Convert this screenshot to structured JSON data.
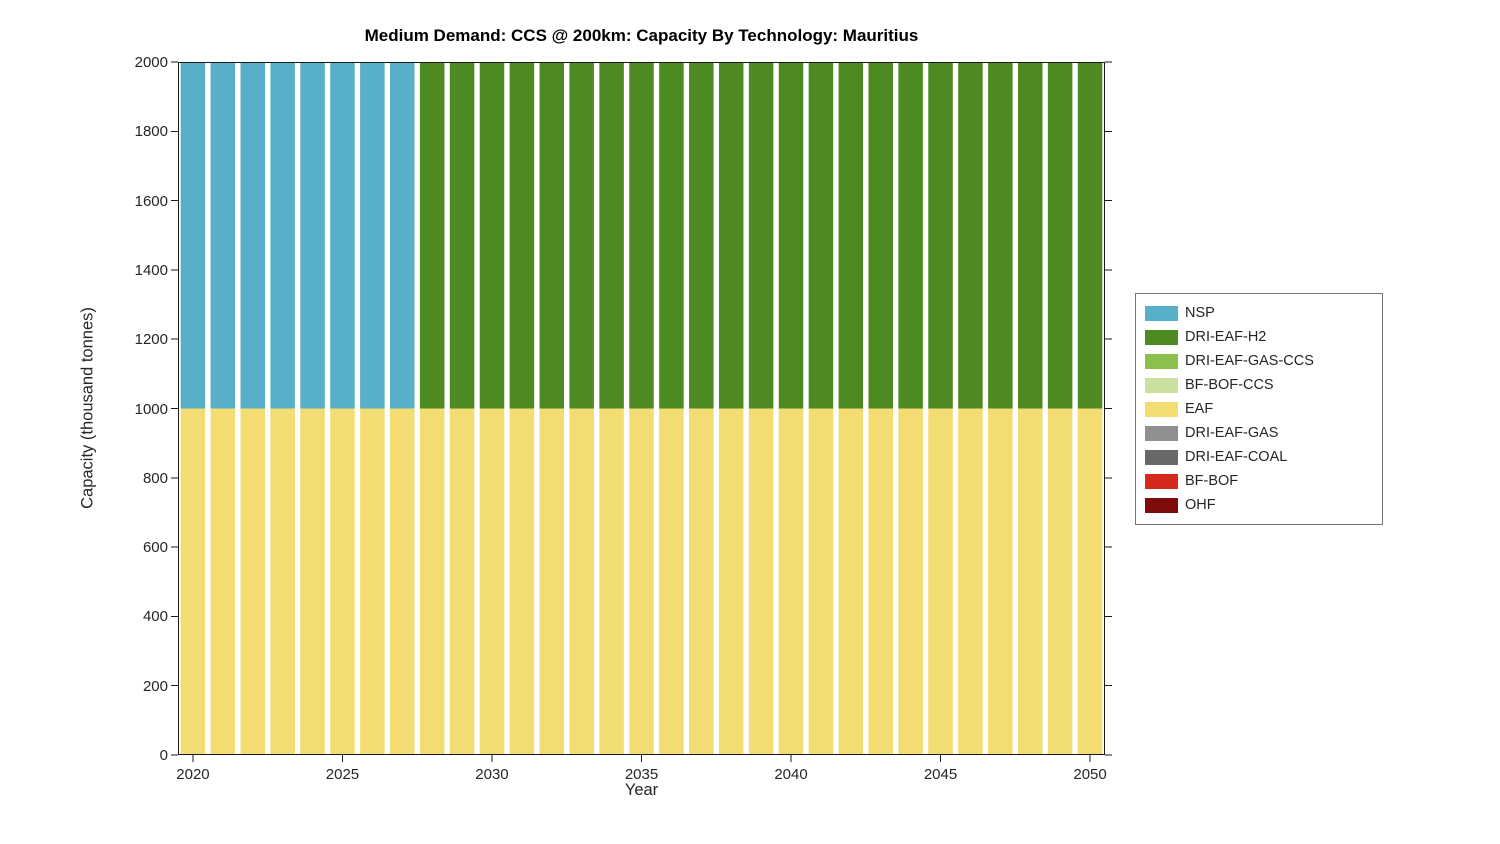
{
  "title": "Medium Demand: CCS @ 200km: Capacity By Technology: Mauritius",
  "xlabel": "Year",
  "ylabel": "Capacity (thousand tonnes)",
  "chart_data": {
    "type": "bar",
    "stacked": true,
    "title": "Medium Demand: CCS @ 200km: Capacity By Technology: Mauritius",
    "xlabel": "Year",
    "ylabel": "Capacity (thousand tonnes)",
    "ylim": [
      0,
      2000
    ],
    "yticks": [
      0,
      200,
      400,
      600,
      800,
      1000,
      1200,
      1400,
      1600,
      1800,
      2000
    ],
    "xticks": [
      2020,
      2025,
      2030,
      2035,
      2040,
      2045,
      2050
    ],
    "grid": false,
    "legend_position": "right-outside",
    "categories": [
      2020,
      2021,
      2022,
      2023,
      2024,
      2025,
      2026,
      2027,
      2028,
      2029,
      2030,
      2031,
      2032,
      2033,
      2034,
      2035,
      2036,
      2037,
      2038,
      2039,
      2040,
      2041,
      2042,
      2043,
      2044,
      2045,
      2046,
      2047,
      2048,
      2049,
      2050
    ],
    "series": [
      {
        "name": "EAF",
        "color": "#f3dc72",
        "values": [
          1000,
          1000,
          1000,
          1000,
          1000,
          1000,
          1000,
          1000,
          1000,
          1000,
          1000,
          1000,
          1000,
          1000,
          1000,
          1000,
          1000,
          1000,
          1000,
          1000,
          1000,
          1000,
          1000,
          1000,
          1000,
          1000,
          1000,
          1000,
          1000,
          1000,
          1000
        ]
      },
      {
        "name": "NSP",
        "color": "#58b0c8",
        "values": [
          1000,
          1000,
          1000,
          1000,
          1000,
          1000,
          1000,
          1000,
          0,
          0,
          0,
          0,
          0,
          0,
          0,
          0,
          0,
          0,
          0,
          0,
          0,
          0,
          0,
          0,
          0,
          0,
          0,
          0,
          0,
          0,
          0
        ]
      },
      {
        "name": "DRI-EAF-H2",
        "color": "#4e8a22",
        "values": [
          0,
          0,
          0,
          0,
          0,
          0,
          0,
          0,
          1000,
          1000,
          1000,
          1000,
          1000,
          1000,
          1000,
          1000,
          1000,
          1000,
          1000,
          1000,
          1000,
          1000,
          1000,
          1000,
          1000,
          1000,
          1000,
          1000,
          1000,
          1000,
          1000
        ]
      }
    ]
  },
  "legend": {
    "items": [
      {
        "label": "NSP",
        "color": "#58b0c8"
      },
      {
        "label": "DRI-EAF-H2",
        "color": "#4e8a22"
      },
      {
        "label": "DRI-EAF-GAS-CCS",
        "color": "#8dbf4c"
      },
      {
        "label": "BF-BOF-CCS",
        "color": "#c9e09e"
      },
      {
        "label": "EAF",
        "color": "#f3dc72"
      },
      {
        "label": "DRI-EAF-GAS",
        "color": "#8f8f8f"
      },
      {
        "label": "DRI-EAF-COAL",
        "color": "#686868"
      },
      {
        "label": "BF-BOF",
        "color": "#d7281d"
      },
      {
        "label": "OHF",
        "color": "#7e0c0c"
      }
    ]
  }
}
